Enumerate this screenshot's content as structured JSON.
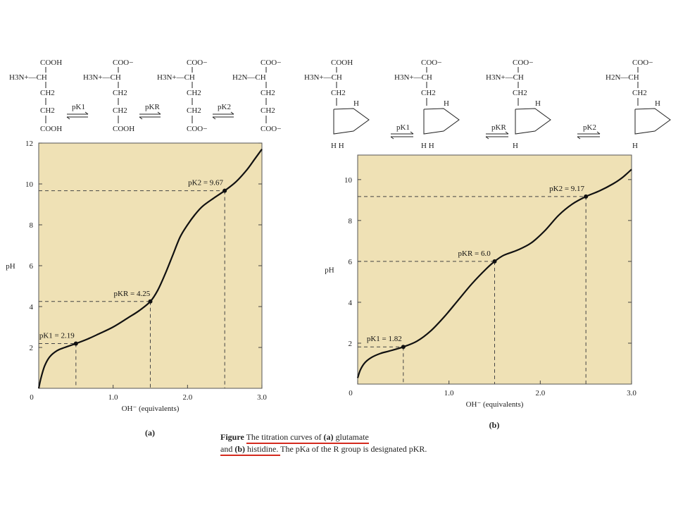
{
  "caption": {
    "label": "Figure",
    "line1": "The titration curves of",
    "a": "(a)",
    "glutamate": "glutamate",
    "and": "and",
    "b": "(b)",
    "histidine": "histidine.",
    "rest": "The pKa of the R group is designated pKR."
  },
  "structures": {
    "glutamate": {
      "forms": [
        {
          "lines": [
            "COOH",
            "H3N+—CH",
            "CH2",
            "CH2",
            "COOH"
          ]
        },
        {
          "lines": [
            "COO−",
            "H3N+—CH",
            "CH2",
            "CH2",
            "COOH"
          ]
        },
        {
          "lines": [
            "COO−",
            "H3N+—CH",
            "CH2",
            "CH2",
            "COO−"
          ]
        },
        {
          "lines": [
            "COO−",
            "H2N—CH",
            "CH2",
            "CH2",
            "COO−"
          ]
        }
      ],
      "arrows": [
        "pK1",
        "pKR",
        "pK2"
      ]
    },
    "histidine": {
      "forms": [
        {
          "lines": [
            "COOH",
            "H3N+—CH",
            "CH2"
          ],
          "ring_top": "H",
          "ring_bottom": "H  H"
        },
        {
          "lines": [
            "COO−",
            "H3N+—CH",
            "CH2"
          ],
          "ring_top": "H",
          "ring_bottom": "H  H"
        },
        {
          "lines": [
            "COO−",
            "H3N+—CH",
            "CH2"
          ],
          "ring_top": "H",
          "ring_bottom": "H"
        },
        {
          "lines": [
            "COO−",
            "H2N—CH",
            "CH2"
          ],
          "ring_top": "H",
          "ring_bottom": "H"
        }
      ],
      "arrows": [
        "pK1",
        "pKR",
        "pK2"
      ]
    }
  },
  "chart_data": [
    {
      "type": "line",
      "panel_label": "(a)",
      "xlabel": "OH⁻ (equivalents)",
      "ylabel": "pH",
      "xlim": [
        0,
        3.0
      ],
      "ylim": [
        0,
        12
      ],
      "x_ticks": [
        "0",
        "1.0",
        "2.0",
        "3.0"
      ],
      "y_ticks": [
        "2",
        "4",
        "6",
        "8",
        "10",
        "12"
      ],
      "background": "#efe1b5",
      "grid": true,
      "series": [
        {
          "x": [
            0,
            0.03,
            0.08,
            0.15,
            0.25,
            0.35,
            0.5,
            0.65,
            0.8,
            1.0,
            1.2,
            1.35,
            1.5,
            1.6,
            1.7,
            1.8,
            1.9,
            2.0,
            2.1,
            2.2,
            2.35,
            2.5,
            2.65,
            2.8,
            2.9,
            3.0
          ],
          "y": [
            0.0,
            0.5,
            1.1,
            1.55,
            1.85,
            2.0,
            2.19,
            2.4,
            2.65,
            3.0,
            3.45,
            3.8,
            4.25,
            4.8,
            5.6,
            6.5,
            7.4,
            8.0,
            8.5,
            8.9,
            9.3,
            9.67,
            10.1,
            10.7,
            11.2,
            11.7
          ]
        }
      ],
      "annotations": [
        {
          "label": "pK1 = 2.19",
          "x": 0.5,
          "y": 2.19
        },
        {
          "label": "pKR = 4.25",
          "x": 1.5,
          "y": 4.25
        },
        {
          "label": "pK2 = 9.67",
          "x": 2.5,
          "y": 9.67
        }
      ]
    },
    {
      "type": "line",
      "panel_label": "(b)",
      "xlabel": "OH⁻ (equivalents)",
      "ylabel": "pH",
      "xlim": [
        0,
        3.0
      ],
      "ylim": [
        0,
        11.2
      ],
      "x_ticks": [
        "0",
        "1.0",
        "2.0",
        "3.0"
      ],
      "y_ticks": [
        "2",
        "4",
        "6",
        "8",
        "10"
      ],
      "background": "#efe1b5",
      "grid": true,
      "series": [
        {
          "x": [
            0,
            0.03,
            0.08,
            0.15,
            0.25,
            0.35,
            0.5,
            0.65,
            0.8,
            0.95,
            1.1,
            1.25,
            1.4,
            1.5,
            1.6,
            1.75,
            1.9,
            2.05,
            2.2,
            2.35,
            2.5,
            2.65,
            2.8,
            2.9,
            3.0
          ],
          "y": [
            0.3,
            0.7,
            1.05,
            1.3,
            1.5,
            1.62,
            1.82,
            2.1,
            2.6,
            3.3,
            4.1,
            4.9,
            5.6,
            6.0,
            6.3,
            6.55,
            6.9,
            7.5,
            8.25,
            8.8,
            9.17,
            9.45,
            9.8,
            10.1,
            10.5
          ]
        }
      ],
      "annotations": [
        {
          "label": "pK1 = 1.82",
          "x": 0.5,
          "y": 1.82
        },
        {
          "label": "pKR = 6.0",
          "x": 1.5,
          "y": 6.0
        },
        {
          "label": "pK2 = 9.17",
          "x": 2.5,
          "y": 9.17
        }
      ]
    }
  ]
}
